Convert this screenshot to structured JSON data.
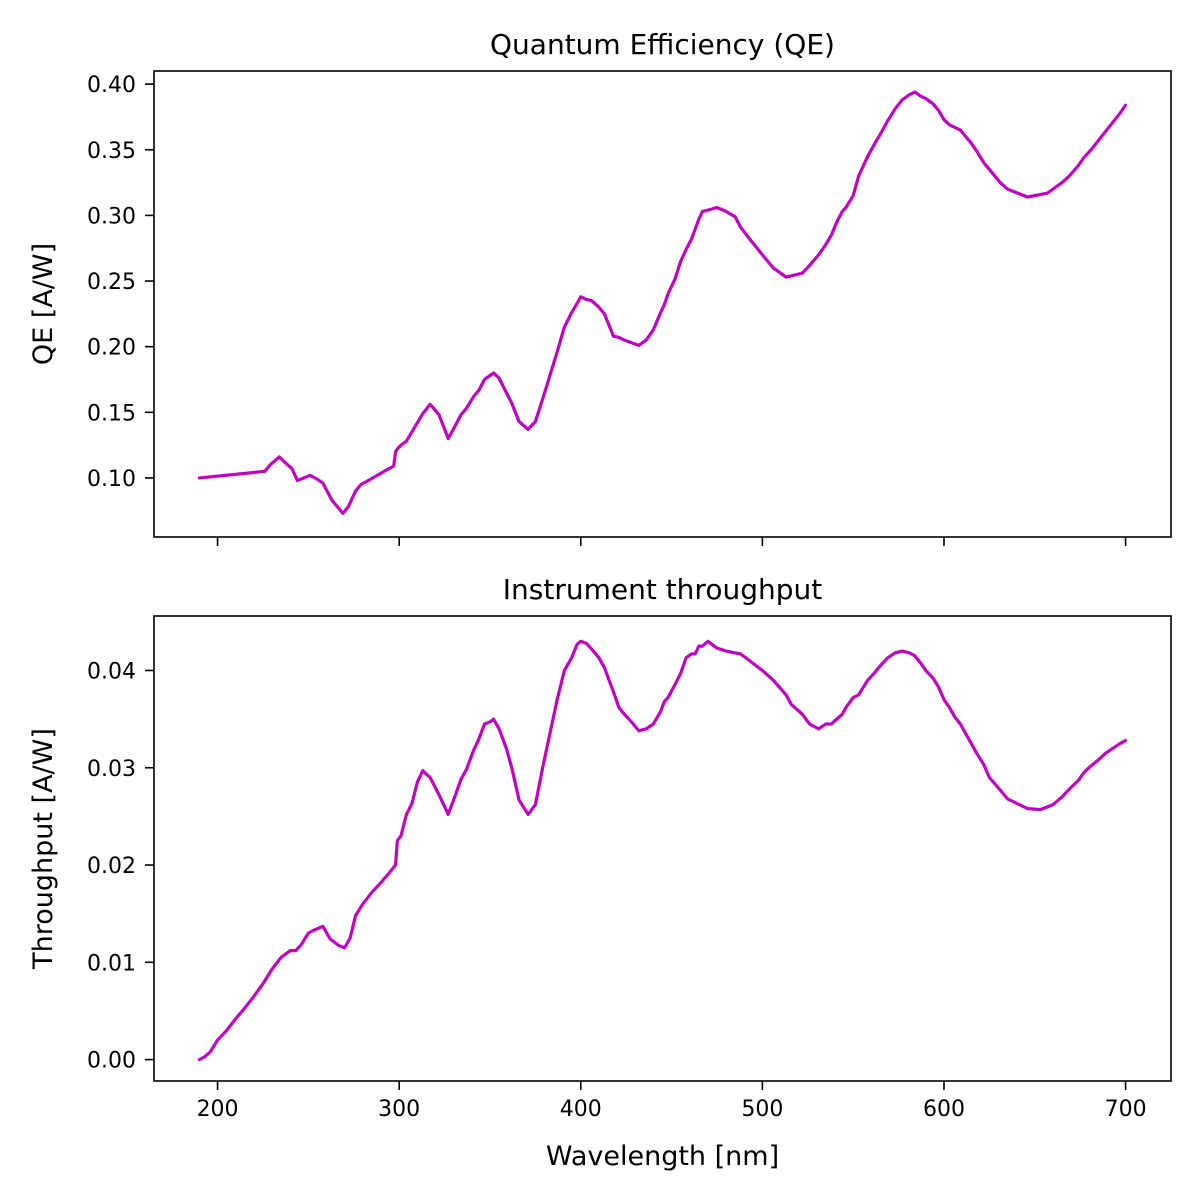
{
  "chart_data": [
    {
      "type": "line",
      "title": "Quantum Efficiency (QE)",
      "xlabel": "",
      "ylabel": "QE [A/W]",
      "xlim": [
        165,
        725
      ],
      "ylim": [
        0.055,
        0.41
      ],
      "xticks": [
        200,
        300,
        400,
        500,
        600,
        700
      ],
      "xtick_labels_visible": false,
      "yticks": [
        0.1,
        0.15,
        0.2,
        0.25,
        0.3,
        0.35,
        0.4
      ],
      "ytick_labels": [
        "0.10",
        "0.15",
        "0.20",
        "0.25",
        "0.30",
        "0.35",
        "0.40"
      ],
      "grid": false,
      "color": "#bf00bf",
      "series": [
        {
          "name": "QE",
          "x": [
            190,
            226,
            229,
            234,
            237,
            241,
            244,
            251,
            255,
            258,
            263,
            269,
            272,
            276,
            279,
            283,
            288,
            293,
            297,
            298,
            299,
            301,
            304,
            307,
            310,
            313,
            317,
            319,
            322,
            327,
            331,
            334,
            337,
            341,
            344,
            347,
            350,
            352,
            355,
            359,
            362,
            366,
            371,
            375,
            379,
            383,
            387,
            391,
            395,
            398,
            400,
            403,
            406,
            410,
            413,
            418,
            421,
            424,
            428,
            432,
            436,
            440,
            444,
            446,
            448,
            452,
            455,
            458,
            461,
            465,
            467,
            470,
            475,
            480,
            485,
            488,
            493,
            500,
            506,
            513,
            516,
            522,
            526,
            531,
            535,
            538,
            541,
            544,
            546,
            550,
            553,
            558,
            562,
            565,
            569,
            573,
            577,
            581,
            584,
            587,
            590,
            594,
            597,
            600,
            603,
            606,
            609,
            612,
            615,
            618,
            622,
            625,
            631,
            635,
            646,
            657,
            660,
            665,
            669,
            674,
            677,
            681,
            685,
            689,
            693,
            697,
            700
          ],
          "values": [
            0.1,
            0.105,
            0.11,
            0.116,
            0.112,
            0.107,
            0.098,
            0.102,
            0.099,
            0.096,
            0.083,
            0.073,
            0.078,
            0.09,
            0.095,
            0.098,
            0.102,
            0.106,
            0.109,
            0.12,
            0.122,
            0.125,
            0.128,
            0.135,
            0.142,
            0.149,
            0.156,
            0.153,
            0.148,
            0.13,
            0.14,
            0.148,
            0.153,
            0.162,
            0.167,
            0.175,
            0.178,
            0.18,
            0.176,
            0.165,
            0.157,
            0.143,
            0.137,
            0.143,
            0.16,
            0.178,
            0.196,
            0.215,
            0.226,
            0.233,
            0.238,
            0.236,
            0.235,
            0.23,
            0.225,
            0.208,
            0.207,
            0.205,
            0.203,
            0.201,
            0.205,
            0.213,
            0.226,
            0.232,
            0.24,
            0.252,
            0.265,
            0.274,
            0.282,
            0.297,
            0.303,
            0.304,
            0.306,
            0.303,
            0.299,
            0.291,
            0.282,
            0.27,
            0.26,
            0.253,
            0.254,
            0.256,
            0.262,
            0.27,
            0.278,
            0.285,
            0.295,
            0.303,
            0.306,
            0.315,
            0.33,
            0.345,
            0.355,
            0.362,
            0.372,
            0.381,
            0.388,
            0.392,
            0.394,
            0.391,
            0.389,
            0.385,
            0.38,
            0.373,
            0.369,
            0.367,
            0.365,
            0.36,
            0.355,
            0.349,
            0.34,
            0.335,
            0.325,
            0.32,
            0.314,
            0.317,
            0.32,
            0.325,
            0.33,
            0.338,
            0.344,
            0.35,
            0.357,
            0.364,
            0.371,
            0.378,
            0.384
          ]
        }
      ]
    },
    {
      "type": "line",
      "title": "Instrument throughput",
      "xlabel": "Wavelength [nm]",
      "ylabel": "Throughput [A/W]",
      "xlim": [
        165,
        725
      ],
      "ylim": [
        -0.0022,
        0.0456
      ],
      "xticks": [
        200,
        300,
        400,
        500,
        600,
        700
      ],
      "xtick_labels": [
        "200",
        "300",
        "400",
        "500",
        "600",
        "700"
      ],
      "yticks": [
        0.0,
        0.01,
        0.02,
        0.03,
        0.04
      ],
      "ytick_labels": [
        "0.00",
        "0.01",
        "0.02",
        "0.03",
        "0.04"
      ],
      "grid": false,
      "color": "#bf00bf",
      "series": [
        {
          "name": "Throughput",
          "x": [
            190,
            193,
            196,
            200,
            205,
            210,
            215,
            220,
            225,
            230,
            235,
            240,
            243,
            246,
            250,
            253,
            258,
            262,
            267,
            270,
            273,
            276,
            280,
            285,
            290,
            295,
            298,
            299,
            301,
            304,
            307,
            310,
            313,
            317,
            319,
            322,
            327,
            331,
            334,
            337,
            341,
            344,
            347,
            350,
            352,
            355,
            359,
            362,
            366,
            371,
            375,
            379,
            383,
            387,
            391,
            395,
            398,
            400,
            403,
            406,
            410,
            413,
            418,
            421,
            424,
            428,
            432,
            436,
            440,
            444,
            446,
            448,
            452,
            455,
            458,
            461,
            463,
            465,
            467,
            470,
            475,
            480,
            485,
            488,
            493,
            500,
            506,
            513,
            516,
            522,
            526,
            531,
            535,
            538,
            541,
            544,
            546,
            550,
            553,
            558,
            562,
            565,
            569,
            573,
            577,
            581,
            584,
            587,
            590,
            594,
            597,
            600,
            603,
            606,
            609,
            612,
            615,
            618,
            622,
            625,
            631,
            635,
            646,
            653,
            660,
            665,
            669,
            674,
            677,
            681,
            685,
            689,
            693,
            697,
            700
          ],
          "values": [
            0.0,
            0.0003,
            0.0008,
            0.002,
            0.003,
            0.0042,
            0.0053,
            0.0065,
            0.0078,
            0.0093,
            0.0105,
            0.0112,
            0.0112,
            0.0118,
            0.013,
            0.0133,
            0.0137,
            0.0124,
            0.0117,
            0.0115,
            0.0125,
            0.0148,
            0.016,
            0.0172,
            0.0182,
            0.0193,
            0.02,
            0.0225,
            0.023,
            0.0252,
            0.0263,
            0.0285,
            0.0297,
            0.029,
            0.0283,
            0.0272,
            0.0252,
            0.0272,
            0.0288,
            0.0298,
            0.0318,
            0.033,
            0.0345,
            0.0347,
            0.035,
            0.034,
            0.032,
            0.03,
            0.0267,
            0.0252,
            0.0262,
            0.03,
            0.0335,
            0.037,
            0.04,
            0.0413,
            0.0427,
            0.043,
            0.0428,
            0.0422,
            0.0413,
            0.0403,
            0.0378,
            0.0362,
            0.0355,
            0.0347,
            0.0338,
            0.034,
            0.0345,
            0.0358,
            0.0368,
            0.0372,
            0.0386,
            0.0397,
            0.0413,
            0.0417,
            0.0417,
            0.0425,
            0.0425,
            0.043,
            0.0423,
            0.042,
            0.0418,
            0.0417,
            0.041,
            0.04,
            0.039,
            0.0375,
            0.0365,
            0.0355,
            0.0345,
            0.034,
            0.0345,
            0.0345,
            0.035,
            0.0355,
            0.0362,
            0.0372,
            0.0375,
            0.039,
            0.0398,
            0.0405,
            0.0413,
            0.0418,
            0.042,
            0.0418,
            0.0415,
            0.0408,
            0.04,
            0.0392,
            0.0383,
            0.037,
            0.0362,
            0.0352,
            0.0345,
            0.0335,
            0.0325,
            0.0315,
            0.0303,
            0.029,
            0.0277,
            0.0268,
            0.0258,
            0.0257,
            0.0262,
            0.027,
            0.0278,
            0.0287,
            0.0295,
            0.0302,
            0.0308,
            0.0315,
            0.032,
            0.0325,
            0.0328
          ]
        }
      ]
    }
  ]
}
